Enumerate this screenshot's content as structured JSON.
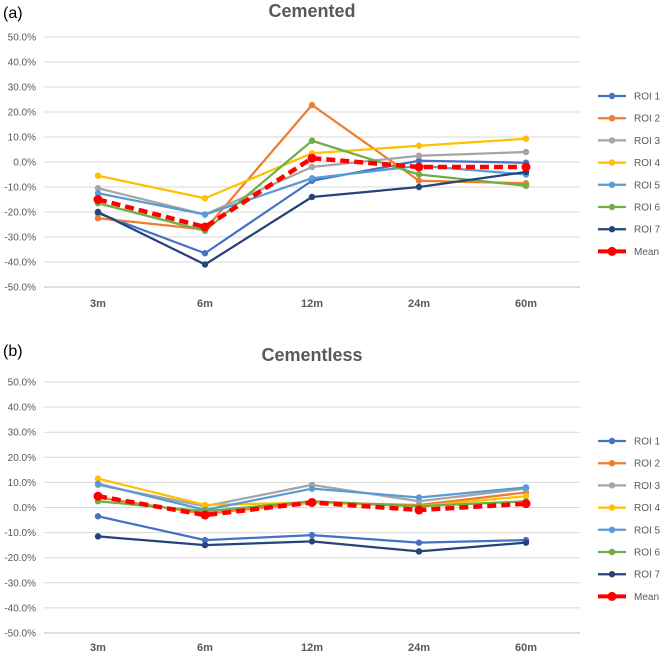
{
  "chart_data": [
    {
      "panel_label": "(a)",
      "type": "line",
      "title": "Cemented",
      "categories": [
        "3m",
        "6m",
        "12m",
        "24m",
        "60m"
      ],
      "y_ticks": [
        "50.0%",
        "40.0%",
        "30.0%",
        "20.0%",
        "10.0%",
        "0.0%",
        "-10.0%",
        "-20.0%",
        "-30.0%",
        "-40.0%",
        "-50.0%"
      ],
      "ylim": [
        -50,
        50
      ],
      "grid": true,
      "legend_position": "right",
      "series": [
        {
          "name": "ROI 1",
          "color": "#4472C4",
          "values": [
            -20.5,
            -36.5,
            -7.5,
            0.5,
            -0.3
          ]
        },
        {
          "name": "ROI 2",
          "color": "#ED7D31",
          "values": [
            -22.5,
            -27,
            22.8,
            -7.5,
            -8.5
          ]
        },
        {
          "name": "ROI 3",
          "color": "#A5A5A5",
          "values": [
            -10.5,
            -21,
            -2,
            2.5,
            4
          ]
        },
        {
          "name": "ROI 4",
          "color": "#FFC000",
          "values": [
            -5.5,
            -14.5,
            3.5,
            6.5,
            9.3
          ]
        },
        {
          "name": "ROI 5",
          "color": "#5B9BD5",
          "values": [
            -12.5,
            -21,
            -6.5,
            -1.5,
            -5
          ]
        },
        {
          "name": "ROI 6",
          "color": "#70AD47",
          "values": [
            -16.5,
            -27.5,
            8.5,
            -5,
            -9.5
          ]
        },
        {
          "name": "ROI 7",
          "color": "#264478",
          "values": [
            -20,
            -41,
            -14,
            -10,
            -4
          ]
        },
        {
          "name": "Mean",
          "color": "#FF0000",
          "dashed": true,
          "values": [
            -15,
            -26,
            1.5,
            -2,
            -2
          ]
        }
      ]
    },
    {
      "panel_label": "(b)",
      "type": "line",
      "title": "Cementless",
      "categories": [
        "3m",
        "6m",
        "12m",
        "24m",
        "60m"
      ],
      "y_ticks": [
        "50.0%",
        "40.0%",
        "30.0%",
        "20.0%",
        "10.0%",
        "0.0%",
        "-10.0%",
        "-20.0%",
        "-30.0%",
        "-40.0%",
        "-50.0%"
      ],
      "ylim": [
        -50,
        50
      ],
      "grid": true,
      "legend_position": "right",
      "series": [
        {
          "name": "ROI 1",
          "color": "#4472C4",
          "values": [
            -3.5,
            -13,
            -11,
            -14,
            -13
          ]
        },
        {
          "name": "ROI 2",
          "color": "#ED7D31",
          "values": [
            4,
            -2.5,
            2,
            1,
            6
          ]
        },
        {
          "name": "ROI 3",
          "color": "#A5A5A5",
          "values": [
            9,
            0.5,
            9,
            2.5,
            7.5
          ]
        },
        {
          "name": "ROI 4",
          "color": "#FFC000",
          "values": [
            11.5,
            1,
            2,
            0.5,
            4.5
          ]
        },
        {
          "name": "ROI 5",
          "color": "#5B9BD5",
          "values": [
            9.5,
            -1,
            7.5,
            4,
            8
          ]
        },
        {
          "name": "ROI 6",
          "color": "#70AD47",
          "values": [
            2.5,
            -1.5,
            2.5,
            0.5,
            2.5
          ]
        },
        {
          "name": "ROI 7",
          "color": "#264478",
          "values": [
            -11.5,
            -15,
            -13.5,
            -17.5,
            -14
          ]
        },
        {
          "name": "Mean",
          "color": "#FF0000",
          "dashed": true,
          "values": [
            4.5,
            -3,
            2,
            -1,
            1.5
          ]
        }
      ]
    }
  ]
}
